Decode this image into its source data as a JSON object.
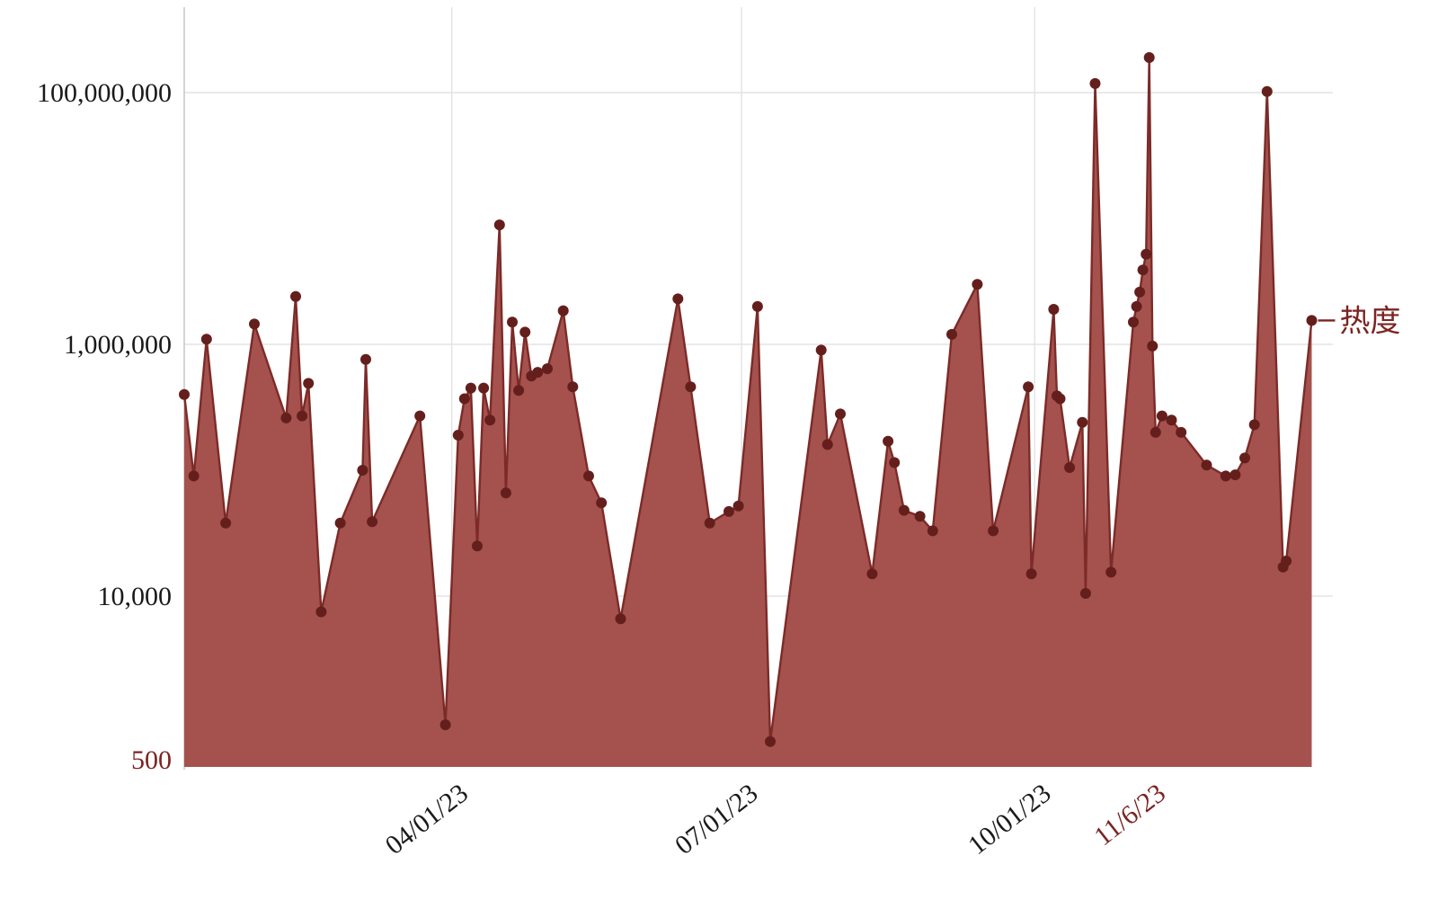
{
  "chart_data": {
    "type": "area",
    "title": "",
    "xlabel": "",
    "ylabel": "",
    "y_scale": "log",
    "ylim": [
      500,
      460000000
    ],
    "x_domain": [
      "2023-01-07",
      "2023-12-28"
    ],
    "grid": true,
    "legend": {
      "label": "热度",
      "position": "right-end"
    },
    "colors": {
      "fill": "#A5524E",
      "line": "#7C2B28",
      "dot": "#641F1D",
      "accent_text": "#7B2422",
      "text": "#1A1A1A",
      "grid": "#E3E3E3",
      "axis": "#C9C9C9"
    },
    "y_axis": {
      "ticks": [
        {
          "label": "500",
          "value": 500,
          "accent": true,
          "grid": false
        },
        {
          "label": "10,000",
          "value": 10000,
          "accent": false,
          "grid": true
        },
        {
          "label": "1,000,000",
          "value": 1000000,
          "accent": false,
          "grid": true
        },
        {
          "label": "100,000,000",
          "value": 100000000,
          "accent": false,
          "grid": true
        }
      ]
    },
    "x_axis": {
      "ticks": [
        {
          "label": "04/01/23",
          "date": "2023-04-01",
          "accent": false,
          "grid": true
        },
        {
          "label": "07/01/23",
          "date": "2023-07-01",
          "accent": false,
          "grid": true
        },
        {
          "label": "10/01/23",
          "date": "2023-10-01",
          "accent": false,
          "grid": true
        },
        {
          "label": "11/6/23",
          "date": "2023-11-06",
          "accent": true,
          "grid": false
        }
      ]
    },
    "series": [
      {
        "name": "热度",
        "points": [
          [
            "2023-01-07",
            400000
          ],
          [
            "2023-01-10",
            90000
          ],
          [
            "2023-01-14",
            1100000
          ],
          [
            "2023-01-20",
            38000
          ],
          [
            "2023-01-29",
            1450000
          ],
          [
            "2023-02-08",
            260000
          ],
          [
            "2023-02-11",
            2400000
          ],
          [
            "2023-02-13",
            270000
          ],
          [
            "2023-02-15",
            490000
          ],
          [
            "2023-02-19",
            7500
          ],
          [
            "2023-02-25",
            38000
          ],
          [
            "2023-03-04",
            100000
          ],
          [
            "2023-03-05",
            760000
          ],
          [
            "2023-03-07",
            39000
          ],
          [
            "2023-03-22",
            270000
          ],
          [
            "2023-03-30",
            950
          ],
          [
            "2023-04-03",
            190000
          ],
          [
            "2023-04-05",
            370000
          ],
          [
            "2023-04-07",
            450000
          ],
          [
            "2023-04-09",
            25000
          ],
          [
            "2023-04-11",
            450000
          ],
          [
            "2023-04-13",
            250000
          ],
          [
            "2023-04-16",
            8900000
          ],
          [
            "2023-04-18",
            66000
          ],
          [
            "2023-04-20",
            1500000
          ],
          [
            "2023-04-22",
            430000
          ],
          [
            "2023-04-24",
            1250000
          ],
          [
            "2023-04-26",
            560000
          ],
          [
            "2023-04-28",
            600000
          ],
          [
            "2023-05-01",
            640000
          ],
          [
            "2023-05-06",
            1850000
          ],
          [
            "2023-05-09",
            460000
          ],
          [
            "2023-05-14",
            90000
          ],
          [
            "2023-05-18",
            55000
          ],
          [
            "2023-05-24",
            6600
          ],
          [
            "2023-06-11",
            2300000
          ],
          [
            "2023-06-15",
            460000
          ],
          [
            "2023-06-21",
            38000
          ],
          [
            "2023-06-27",
            47000
          ],
          [
            "2023-06-30",
            52000
          ],
          [
            "2023-07-06",
            2000000
          ],
          [
            "2023-07-10",
            700
          ],
          [
            "2023-07-26",
            900000
          ],
          [
            "2023-07-28",
            160000
          ],
          [
            "2023-08-01",
            280000
          ],
          [
            "2023-08-11",
            15000
          ],
          [
            "2023-08-16",
            170000
          ],
          [
            "2023-08-18",
            115000
          ],
          [
            "2023-08-21",
            48000
          ],
          [
            "2023-08-26",
            43000
          ],
          [
            "2023-08-30",
            33000
          ],
          [
            "2023-09-05",
            1200000
          ],
          [
            "2023-09-13",
            3000000
          ],
          [
            "2023-09-18",
            33000
          ],
          [
            "2023-09-29",
            460000
          ],
          [
            "2023-09-30",
            15000
          ],
          [
            "2023-10-07",
            1900000
          ],
          [
            "2023-10-08",
            390000
          ],
          [
            "2023-10-09",
            370000
          ],
          [
            "2023-10-12",
            105000
          ],
          [
            "2023-10-16",
            240000
          ],
          [
            "2023-10-17",
            10500
          ],
          [
            "2023-10-20",
            118000000
          ],
          [
            "2023-10-25",
            15500
          ],
          [
            "2023-11-01",
            1500000
          ],
          [
            "2023-11-02",
            2000000
          ],
          [
            "2023-11-03",
            2600000
          ],
          [
            "2023-11-04",
            3900000
          ],
          [
            "2023-11-05",
            5200000
          ],
          [
            "2023-11-06",
            190000000
          ],
          [
            "2023-11-07",
            970000
          ],
          [
            "2023-11-08",
            200000
          ],
          [
            "2023-11-10",
            270000
          ],
          [
            "2023-11-13",
            250000
          ],
          [
            "2023-11-16",
            200000
          ],
          [
            "2023-11-24",
            110000
          ],
          [
            "2023-11-30",
            90000
          ],
          [
            "2023-12-03",
            92000
          ],
          [
            "2023-12-06",
            125000
          ],
          [
            "2023-12-09",
            230000
          ],
          [
            "2023-12-13",
            102000000
          ],
          [
            "2023-12-18",
            17000
          ],
          [
            "2023-12-19",
            19000
          ],
          [
            "2023-12-27",
            1550000
          ]
        ]
      }
    ]
  }
}
